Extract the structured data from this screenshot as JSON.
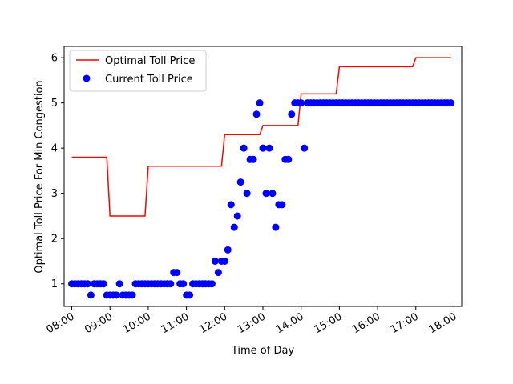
{
  "chart_data": {
    "type": "line+scatter",
    "title": "",
    "xlabel": "Time of Day",
    "ylabel": "Optimal Toll Price For Min Congestion",
    "x_ticks": [
      "08:00",
      "09:00",
      "10:00",
      "11:00",
      "12:00",
      "13:00",
      "14:00",
      "15:00",
      "16:00",
      "17:00",
      "18:00"
    ],
    "y_ticks": [
      "1",
      "2",
      "3",
      "4",
      "5",
      "6"
    ],
    "xlim": [
      "07:48",
      "18:12"
    ],
    "ylim": [
      0.5,
      6.25
    ],
    "grid": false,
    "legend_position": "top-left",
    "series": [
      {
        "name": "Optimal Toll Price",
        "type": "line",
        "color": "#ff0000",
        "points": [
          [
            "08:00",
            3.8
          ],
          [
            "08:55",
            3.8
          ],
          [
            "09:00",
            2.5
          ],
          [
            "09:55",
            2.5
          ],
          [
            "10:00",
            3.6
          ],
          [
            "11:55",
            3.6
          ],
          [
            "12:00",
            4.3
          ],
          [
            "12:55",
            4.3
          ],
          [
            "13:00",
            4.5
          ],
          [
            "13:55",
            4.5
          ],
          [
            "14:00",
            5.2
          ],
          [
            "14:55",
            5.2
          ],
          [
            "15:00",
            5.8
          ],
          [
            "16:55",
            5.8
          ],
          [
            "17:00",
            6.0
          ],
          [
            "17:55",
            6.0
          ]
        ]
      },
      {
        "name": "Current Toll Price",
        "type": "scatter",
        "color": "#0000ff",
        "points": [
          [
            "08:00",
            1
          ],
          [
            "08:05",
            1
          ],
          [
            "08:10",
            1
          ],
          [
            "08:15",
            1
          ],
          [
            "08:20",
            1
          ],
          [
            "08:25",
            1
          ],
          [
            "08:30",
            0.75
          ],
          [
            "08:35",
            1
          ],
          [
            "08:40",
            1
          ],
          [
            "08:45",
            1
          ],
          [
            "08:50",
            1
          ],
          [
            "08:55",
            0.75
          ],
          [
            "09:00",
            0.75
          ],
          [
            "09:05",
            0.75
          ],
          [
            "09:10",
            0.75
          ],
          [
            "09:15",
            1
          ],
          [
            "09:20",
            0.75
          ],
          [
            "09:25",
            0.75
          ],
          [
            "09:30",
            0.75
          ],
          [
            "09:35",
            0.75
          ],
          [
            "09:40",
            1
          ],
          [
            "09:45",
            1
          ],
          [
            "09:50",
            1
          ],
          [
            "09:55",
            1
          ],
          [
            "10:00",
            1
          ],
          [
            "10:05",
            1
          ],
          [
            "10:10",
            1
          ],
          [
            "10:15",
            1
          ],
          [
            "10:20",
            1
          ],
          [
            "10:25",
            1
          ],
          [
            "10:30",
            1
          ],
          [
            "10:35",
            1
          ],
          [
            "10:40",
            1.25
          ],
          [
            "10:45",
            1.25
          ],
          [
            "10:50",
            1
          ],
          [
            "10:55",
            1
          ],
          [
            "11:00",
            0.75
          ],
          [
            "11:05",
            0.75
          ],
          [
            "11:10",
            1
          ],
          [
            "11:15",
            1
          ],
          [
            "11:20",
            1
          ],
          [
            "11:25",
            1
          ],
          [
            "11:30",
            1
          ],
          [
            "11:35",
            1
          ],
          [
            "11:40",
            1
          ],
          [
            "11:45",
            1.5
          ],
          [
            "11:50",
            1.25
          ],
          [
            "11:55",
            1.5
          ],
          [
            "12:00",
            1.5
          ],
          [
            "12:05",
            1.75
          ],
          [
            "12:10",
            2.75
          ],
          [
            "12:15",
            2.25
          ],
          [
            "12:20",
            2.5
          ],
          [
            "12:25",
            3.25
          ],
          [
            "12:30",
            4
          ],
          [
            "12:35",
            3
          ],
          [
            "12:40",
            3.75
          ],
          [
            "12:45",
            3.75
          ],
          [
            "12:50",
            4.75
          ],
          [
            "12:55",
            5
          ],
          [
            "13:00",
            4
          ],
          [
            "13:05",
            3
          ],
          [
            "13:10",
            4
          ],
          [
            "13:15",
            3
          ],
          [
            "13:20",
            2.25
          ],
          [
            "13:25",
            2.75
          ],
          [
            "13:30",
            2.75
          ],
          [
            "13:35",
            3.75
          ],
          [
            "13:40",
            3.75
          ],
          [
            "13:45",
            4.75
          ],
          [
            "13:50",
            5
          ],
          [
            "13:55",
            5
          ],
          [
            "14:00",
            5
          ],
          [
            "14:05",
            4
          ],
          [
            "14:10",
            5
          ],
          [
            "14:15",
            5
          ],
          [
            "14:20",
            5
          ],
          [
            "14:25",
            5
          ],
          [
            "14:30",
            5
          ],
          [
            "14:35",
            5
          ],
          [
            "14:40",
            5
          ],
          [
            "14:45",
            5
          ],
          [
            "14:50",
            5
          ],
          [
            "14:55",
            5
          ],
          [
            "15:00",
            5
          ],
          [
            "15:05",
            5
          ],
          [
            "15:10",
            5
          ],
          [
            "15:15",
            5
          ],
          [
            "15:20",
            5
          ],
          [
            "15:25",
            5
          ],
          [
            "15:30",
            5
          ],
          [
            "15:35",
            5
          ],
          [
            "15:40",
            5
          ],
          [
            "15:45",
            5
          ],
          [
            "15:50",
            5
          ],
          [
            "15:55",
            5
          ],
          [
            "16:00",
            5
          ],
          [
            "16:05",
            5
          ],
          [
            "16:10",
            5
          ],
          [
            "16:15",
            5
          ],
          [
            "16:20",
            5
          ],
          [
            "16:25",
            5
          ],
          [
            "16:30",
            5
          ],
          [
            "16:35",
            5
          ],
          [
            "16:40",
            5
          ],
          [
            "16:45",
            5
          ],
          [
            "16:50",
            5
          ],
          [
            "16:55",
            5
          ],
          [
            "17:00",
            5
          ],
          [
            "17:05",
            5
          ],
          [
            "17:10",
            5
          ],
          [
            "17:15",
            5
          ],
          [
            "17:20",
            5
          ],
          [
            "17:25",
            5
          ],
          [
            "17:30",
            5
          ],
          [
            "17:35",
            5
          ],
          [
            "17:40",
            5
          ],
          [
            "17:45",
            5
          ],
          [
            "17:50",
            5
          ],
          [
            "17:55",
            5
          ]
        ]
      }
    ]
  }
}
